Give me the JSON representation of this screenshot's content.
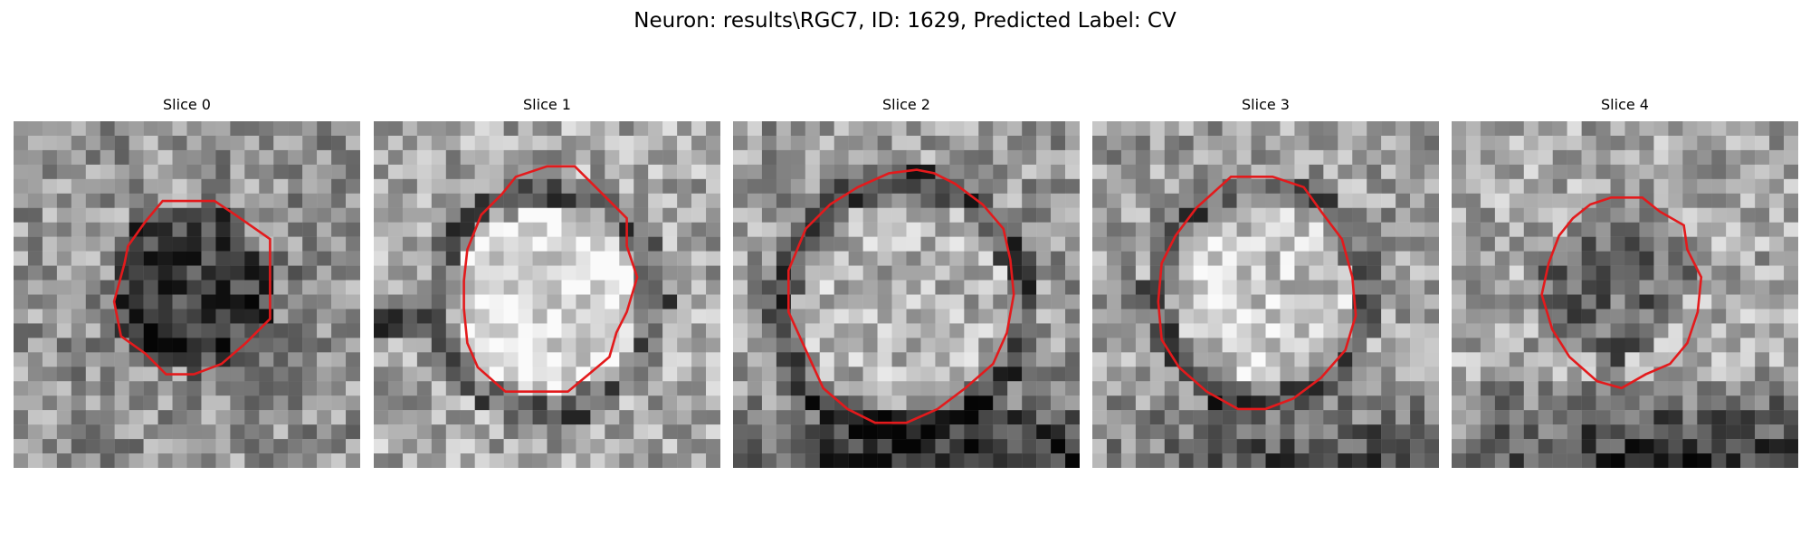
{
  "figure": {
    "title": "Neuron: results\\RGC7, ID: 1629, Predicted Label: CV",
    "panels": [
      {
        "label": "Slice 0"
      },
      {
        "label": "Slice 1"
      },
      {
        "label": "Slice 2"
      },
      {
        "label": "Slice 3"
      },
      {
        "label": "Slice 4"
      }
    ]
  },
  "colors": {
    "background": "#ffffff",
    "contour": "#e31a1c",
    "image_colormap": "grayscale"
  }
}
